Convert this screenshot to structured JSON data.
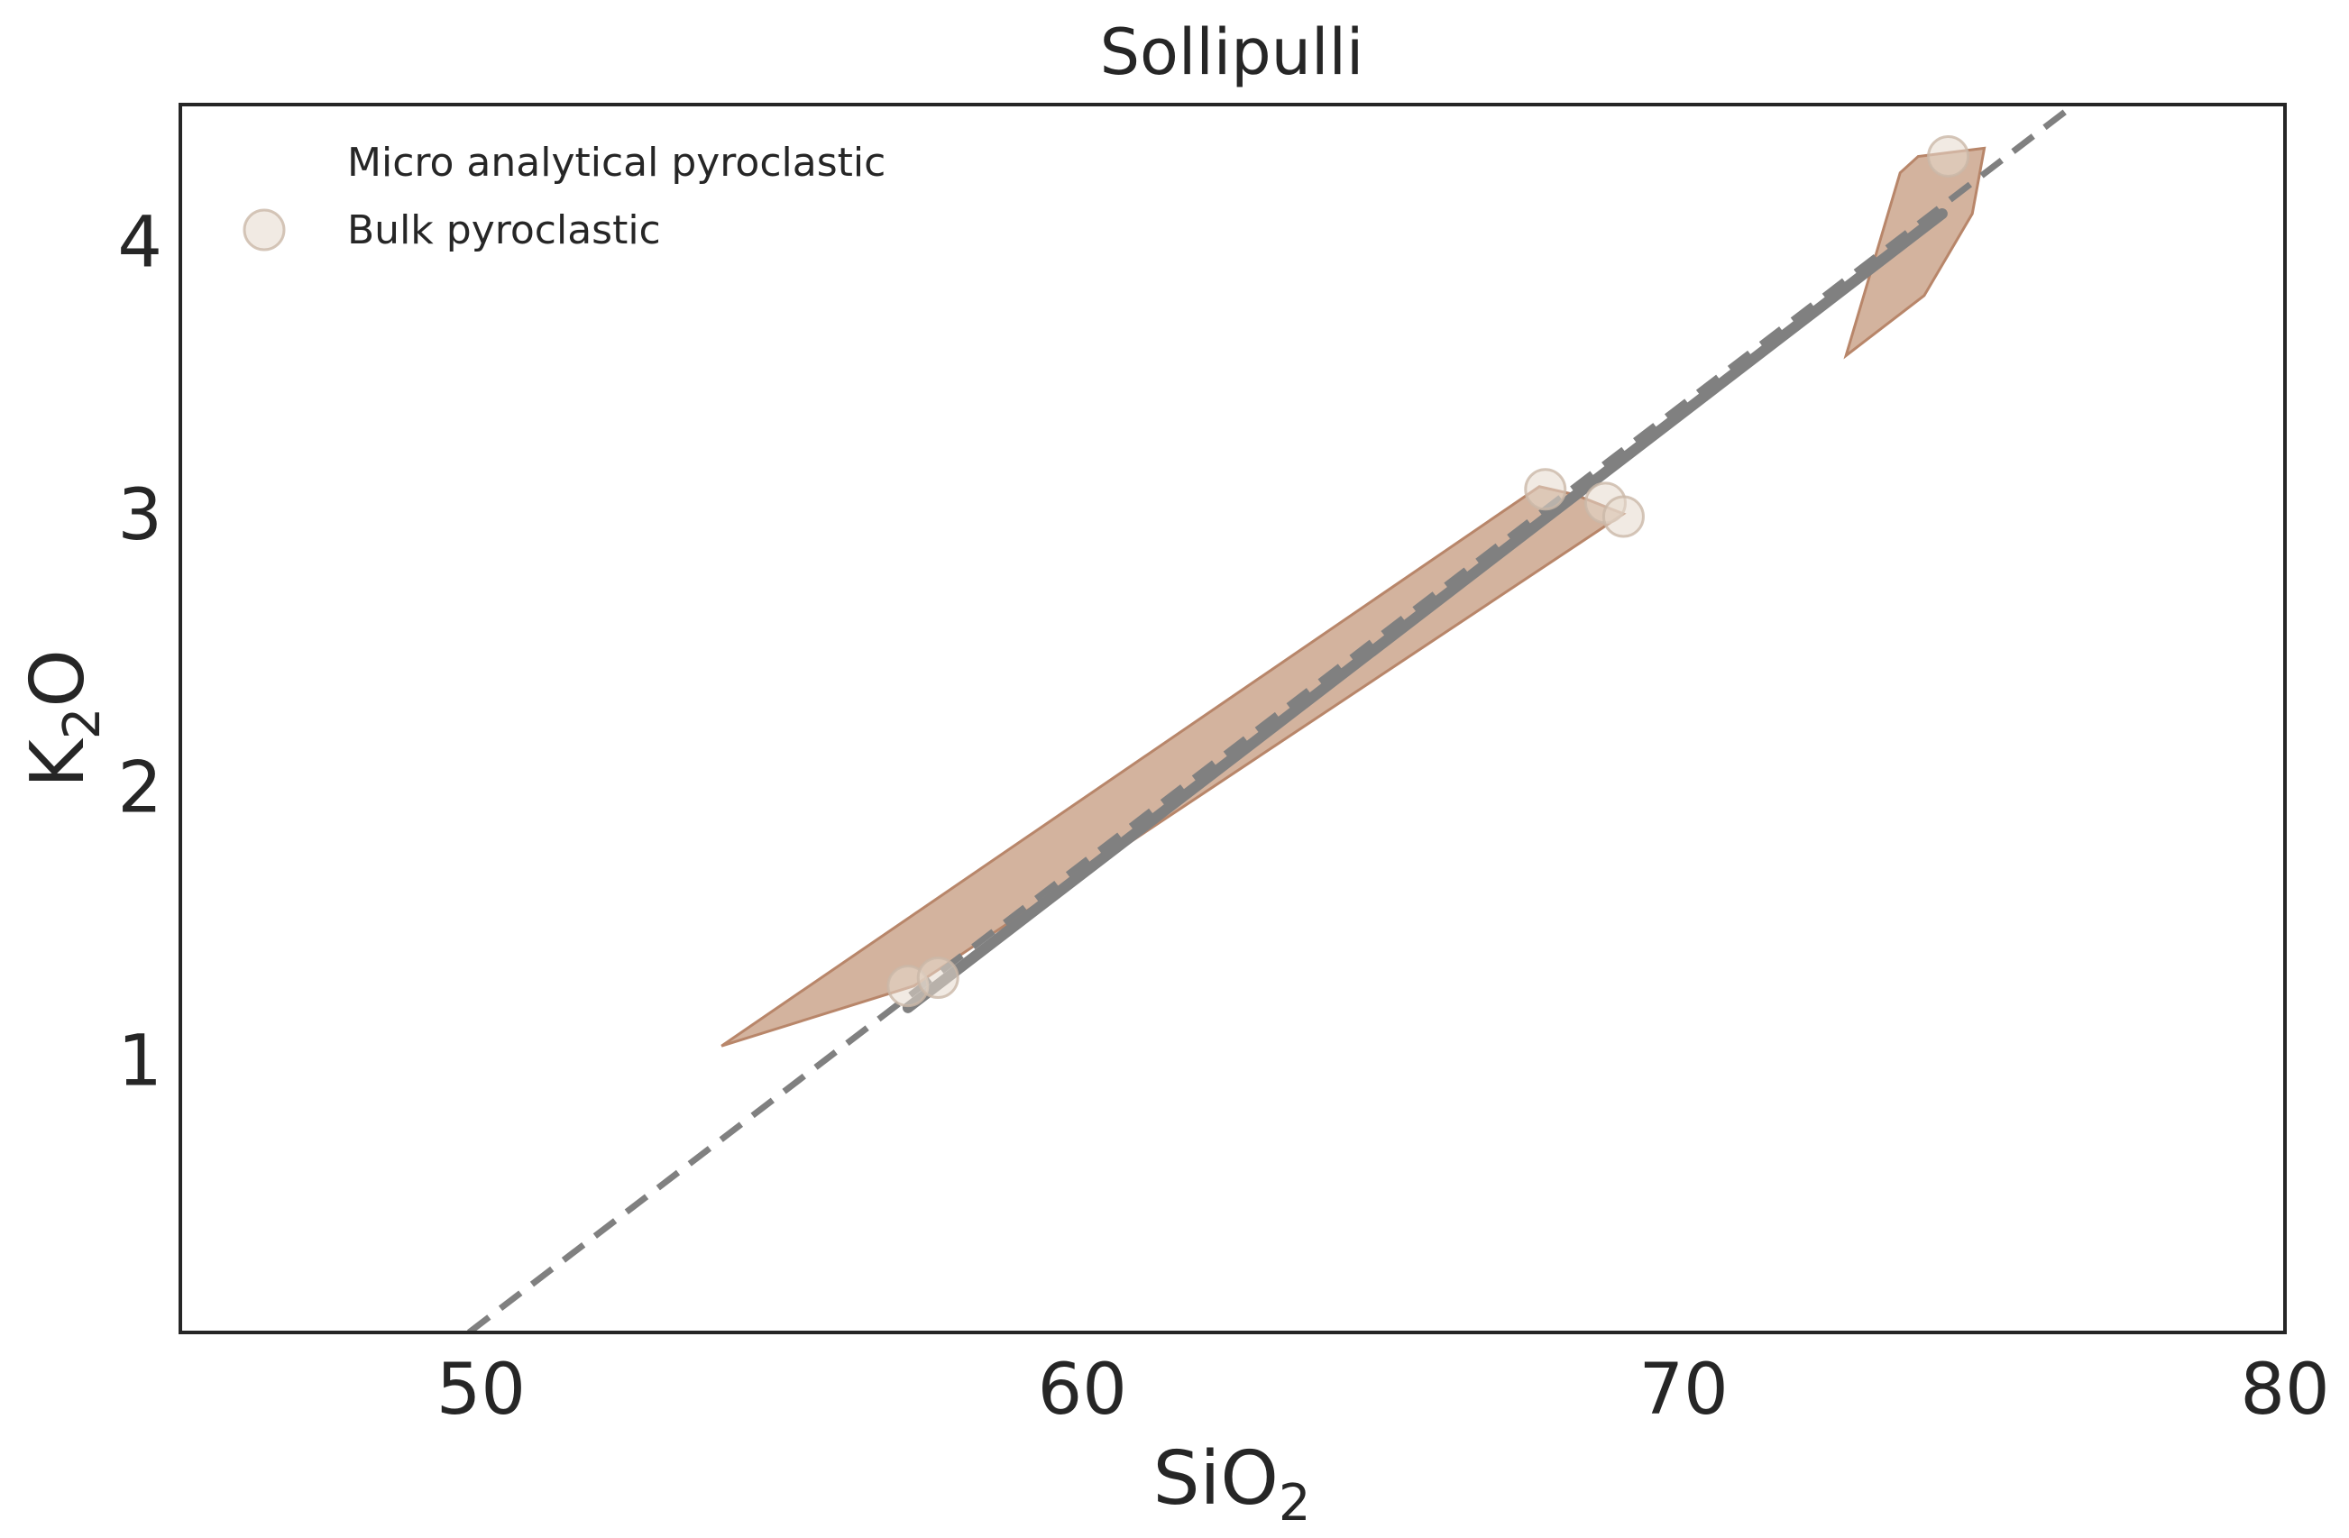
{
  "chart_data": {
    "type": "scatter",
    "title": "Sollipulli",
    "xlabel": {
      "main": "SiO",
      "sub": "2"
    },
    "ylabel": {
      "main": "K",
      "sub": "2",
      "rest": "O"
    },
    "xlim": [
      45,
      80
    ],
    "ylim": [
      0,
      4.5
    ],
    "xticks": [
      {
        "value": 50,
        "label": "50"
      },
      {
        "value": 60,
        "label": "60"
      },
      {
        "value": 70,
        "label": "70"
      },
      {
        "value": 80,
        "label": "80"
      }
    ],
    "yticks": [
      {
        "value": 1,
        "label": "1"
      },
      {
        "value": 2,
        "label": "2"
      },
      {
        "value": 3,
        "label": "3"
      },
      {
        "value": 4,
        "label": "4"
      }
    ],
    "grid": false,
    "legend_position": "top-left",
    "series": [
      {
        "name": "Micro analytical pyroclastic",
        "kind": "polygon",
        "color": "#c49a7e",
        "edge_color": "#b8866a",
        "polygons": [
          [
            [
              54.0,
              1.05
            ],
            [
              67.6,
              3.1
            ],
            [
              68.2,
              3.07
            ],
            [
              69.0,
              3.0
            ],
            [
              57.2,
              1.27
            ]
          ],
          [
            [
              72.7,
              3.58
            ],
            [
              73.6,
              4.25
            ],
            [
              73.9,
              4.31
            ],
            [
              75.0,
              4.34
            ],
            [
              74.8,
              4.1
            ],
            [
              74.0,
              3.8
            ]
          ]
        ]
      },
      {
        "name": "Bulk pyroclastic",
        "kind": "points",
        "color": "#e6d8cc",
        "edge_color": "#cbb8a8",
        "points": [
          [
            57.1,
            1.27
          ],
          [
            57.6,
            1.3
          ],
          [
            67.7,
            3.09
          ],
          [
            68.7,
            3.04
          ],
          [
            69.0,
            2.99
          ],
          [
            74.4,
            4.31
          ]
        ]
      }
    ],
    "trend_line": {
      "color": "#808080",
      "solid": [
        [
          57.1,
          1.19
        ],
        [
          74.3,
          4.1
        ]
      ],
      "dashed": [
        [
          49.8,
          0.0
        ],
        [
          76.5,
          4.5
        ]
      ]
    }
  }
}
